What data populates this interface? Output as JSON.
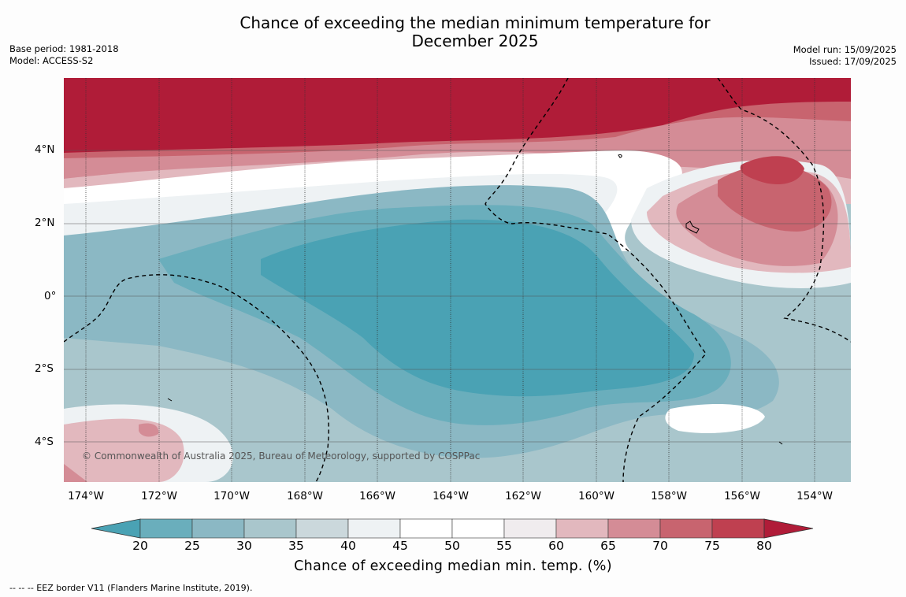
{
  "title_line1": "Chance of exceeding the median minimum temperature for",
  "title_line2": "December 2025",
  "base_period": "Base period: 1981-2018",
  "model": "Model: ACCESS-S2",
  "model_run": "Model run: 15/09/2025",
  "issued": "Issued: 17/09/2025",
  "copyright": "© Commonwealth of Australia 2025, Bureau of Meteorology, supported by COSPPac",
  "lat_labels": [
    "4°N",
    "2°N",
    "0°",
    "2°S",
    "4°S"
  ],
  "lon_labels": [
    "174°W",
    "172°W",
    "170°W",
    "168°W",
    "166°W",
    "164°W",
    "162°W",
    "160°W",
    "158°W",
    "156°W",
    "154°W"
  ],
  "colorbar": {
    "ticks": [
      "20",
      "25",
      "30",
      "35",
      "40",
      "45",
      "50",
      "55",
      "60",
      "65",
      "70",
      "75",
      "80"
    ],
    "colors": [
      "#4aa2b4",
      "#6aaebc",
      "#8bb8c4",
      "#a9c6cc",
      "#cbd8dc",
      "#eef2f4",
      "#ffffff",
      "#ffffff",
      "#f0ecee",
      "#e2b8be",
      "#d48c96",
      "#c8646f",
      "#bf4050",
      "#b01c38"
    ],
    "label": "Chance of exceeding median min. temp. (%)"
  },
  "footnote": "-- -- -- EEZ border V11 (Flanders Marine Institute, 2019)."
}
